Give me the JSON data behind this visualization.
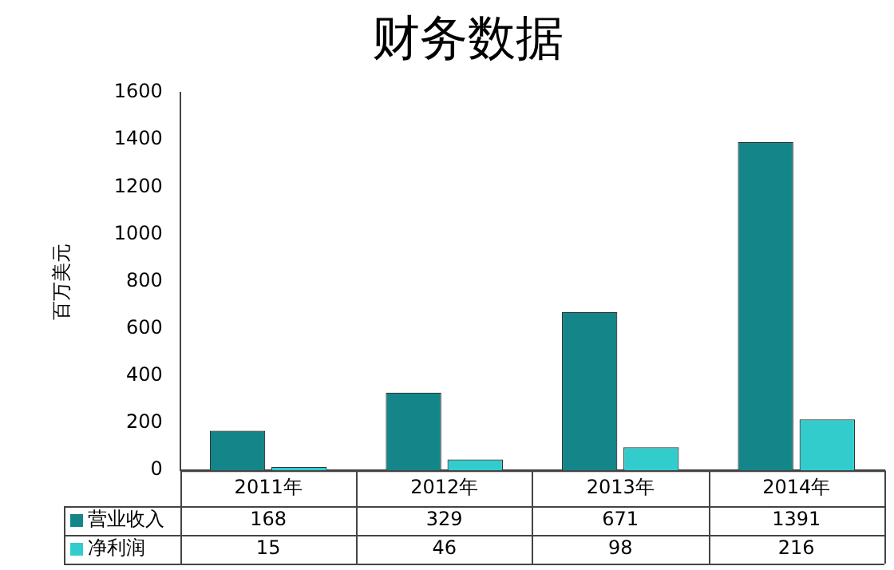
{
  "chart_data": {
    "type": "bar",
    "title": "财务数据",
    "ylabel": "百万美元",
    "categories": [
      "2011年",
      "2012年",
      "2013年",
      "2014年"
    ],
    "series": [
      {
        "name": "营业收入",
        "color": "#14868a",
        "values": [
          168,
          329,
          671,
          1391
        ]
      },
      {
        "name": "净利润",
        "color": "#33cccc",
        "values": [
          15,
          46,
          98,
          216
        ]
      }
    ],
    "ylim": [
      0,
      1600
    ],
    "yticks": [
      0,
      200,
      400,
      600,
      800,
      1000,
      1200,
      1400,
      1600
    ],
    "legend": "bottom",
    "data_labels": true
  }
}
